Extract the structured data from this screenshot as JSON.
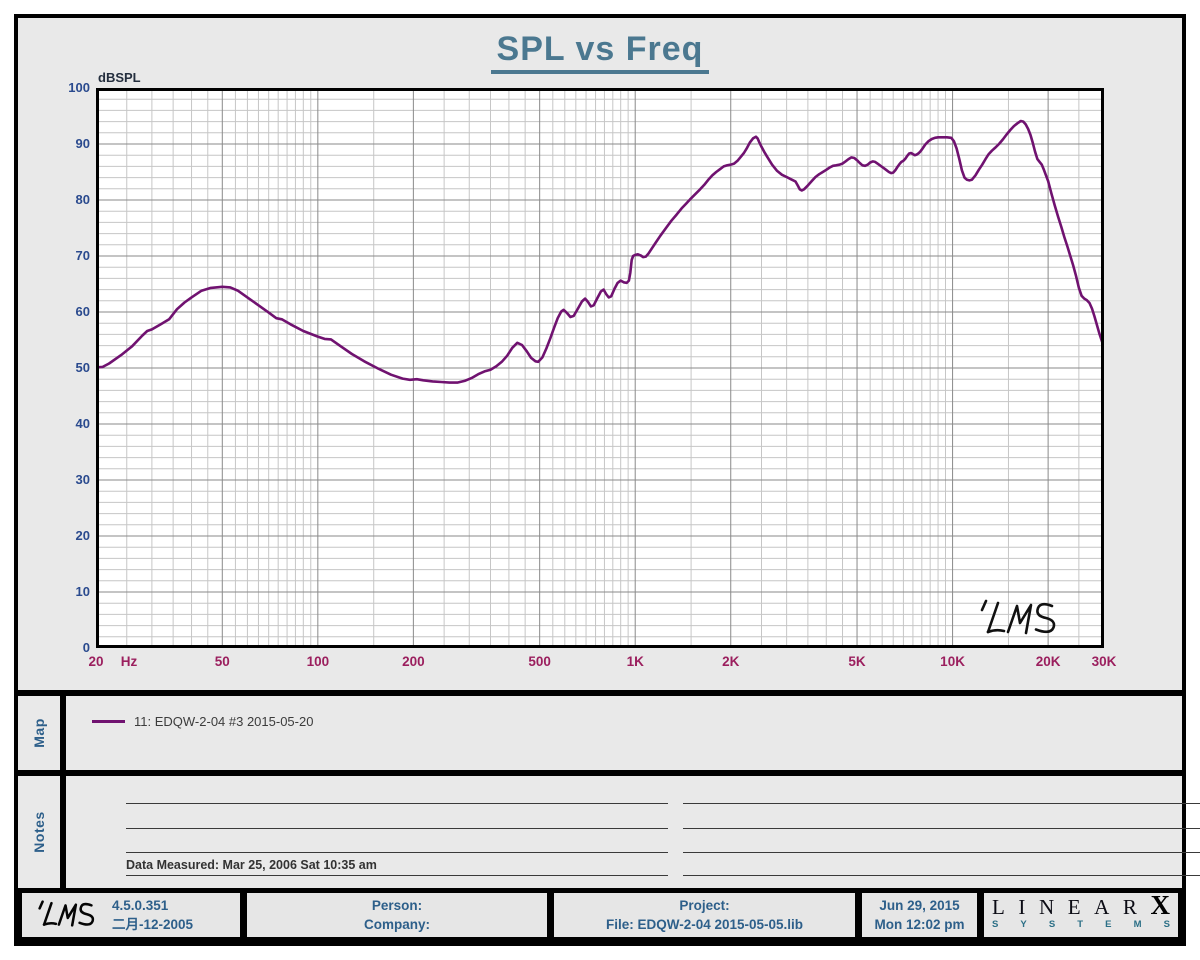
{
  "title": "SPL vs Freq",
  "chart_data": {
    "type": "line",
    "title": "SPL vs Freq",
    "xlabel": "Hz",
    "ylabel": "dBSPL",
    "xscale": "log",
    "xlim": [
      20,
      30000
    ],
    "ylim": [
      0,
      100
    ],
    "grid": "on",
    "x_unit": "Hz",
    "x_ticks": [
      {
        "label": "20",
        "f": 20
      },
      {
        "label": "50",
        "f": 50
      },
      {
        "label": "100",
        "f": 100
      },
      {
        "label": "200",
        "f": 200
      },
      {
        "label": "500",
        "f": 500
      },
      {
        "label": "1K",
        "f": 1000
      },
      {
        "label": "2K",
        "f": 2000
      },
      {
        "label": "5K",
        "f": 5000
      },
      {
        "label": "10K",
        "f": 10000
      },
      {
        "label": "20K",
        "f": 20000
      },
      {
        "label": "30K",
        "f": 30000
      }
    ],
    "y_ticks": [
      0,
      10,
      20,
      30,
      40,
      50,
      60,
      70,
      80,
      90,
      100
    ],
    "watermark": "LMS",
    "series": [
      {
        "name": "11: EDQW-2-04  #3   2015-05-20",
        "color": "#701270",
        "points": [
          [
            20,
            50.1
          ],
          [
            21,
            50.2
          ],
          [
            22,
            50.8
          ],
          [
            24,
            52.3
          ],
          [
            26,
            53.9
          ],
          [
            28,
            55.8
          ],
          [
            29,
            56.6
          ],
          [
            30,
            56.9
          ],
          [
            32,
            57.8
          ],
          [
            34,
            58.7
          ],
          [
            36,
            60.5
          ],
          [
            38,
            61.7
          ],
          [
            40,
            62.6
          ],
          [
            43,
            63.8
          ],
          [
            46,
            64.3
          ],
          [
            50,
            64.5
          ],
          [
            53,
            64.4
          ],
          [
            56,
            63.8
          ],
          [
            60,
            62.6
          ],
          [
            65,
            61.2
          ],
          [
            70,
            59.9
          ],
          [
            74,
            58.9
          ],
          [
            77,
            58.7
          ],
          [
            82,
            57.8
          ],
          [
            90,
            56.6
          ],
          [
            100,
            55.6
          ],
          [
            105,
            55.2
          ],
          [
            110,
            55.1
          ],
          [
            118,
            53.9
          ],
          [
            128,
            52.5
          ],
          [
            140,
            51.2
          ],
          [
            155,
            49.9
          ],
          [
            170,
            48.8
          ],
          [
            185,
            48.1
          ],
          [
            195,
            47.9
          ],
          [
            205,
            48.0
          ],
          [
            215,
            47.8
          ],
          [
            230,
            47.6
          ],
          [
            245,
            47.5
          ],
          [
            260,
            47.4
          ],
          [
            275,
            47.4
          ],
          [
            290,
            47.7
          ],
          [
            305,
            48.2
          ],
          [
            320,
            48.9
          ],
          [
            335,
            49.4
          ],
          [
            350,
            49.7
          ],
          [
            365,
            50.3
          ],
          [
            380,
            51.1
          ],
          [
            395,
            52.2
          ],
          [
            410,
            53.6
          ],
          [
            425,
            54.5
          ],
          [
            440,
            54.1
          ],
          [
            455,
            53.0
          ],
          [
            470,
            51.8
          ],
          [
            485,
            51.2
          ],
          [
            495,
            51.1
          ],
          [
            510,
            51.9
          ],
          [
            525,
            53.5
          ],
          [
            540,
            55.3
          ],
          [
            555,
            57.2
          ],
          [
            570,
            58.9
          ],
          [
            585,
            60.1
          ],
          [
            595,
            60.4
          ],
          [
            610,
            59.8
          ],
          [
            625,
            59.1
          ],
          [
            640,
            59.3
          ],
          [
            660,
            60.6
          ],
          [
            680,
            61.9
          ],
          [
            695,
            62.4
          ],
          [
            710,
            61.8
          ],
          [
            725,
            61.0
          ],
          [
            740,
            61.2
          ],
          [
            760,
            62.5
          ],
          [
            780,
            63.7
          ],
          [
            795,
            64.0
          ],
          [
            810,
            63.2
          ],
          [
            825,
            62.6
          ],
          [
            840,
            62.8
          ],
          [
            860,
            64.1
          ],
          [
            880,
            65.2
          ],
          [
            900,
            65.6
          ],
          [
            920,
            65.3
          ],
          [
            940,
            65.2
          ],
          [
            955,
            65.6
          ],
          [
            965,
            67.0
          ],
          [
            975,
            69.3
          ],
          [
            985,
            70.0
          ],
          [
            1000,
            70.2
          ],
          [
            1020,
            70.3
          ],
          [
            1040,
            70.1
          ],
          [
            1060,
            69.8
          ],
          [
            1080,
            69.9
          ],
          [
            1100,
            70.4
          ],
          [
            1130,
            71.4
          ],
          [
            1160,
            72.4
          ],
          [
            1200,
            73.6
          ],
          [
            1250,
            75.0
          ],
          [
            1300,
            76.3
          ],
          [
            1350,
            77.4
          ],
          [
            1400,
            78.5
          ],
          [
            1450,
            79.4
          ],
          [
            1500,
            80.3
          ],
          [
            1550,
            81.1
          ],
          [
            1600,
            81.9
          ],
          [
            1650,
            82.7
          ],
          [
            1700,
            83.6
          ],
          [
            1750,
            84.4
          ],
          [
            1800,
            85.0
          ],
          [
            1850,
            85.5
          ],
          [
            1900,
            86.0
          ],
          [
            1950,
            86.2
          ],
          [
            2000,
            86.3
          ],
          [
            2050,
            86.5
          ],
          [
            2100,
            87.0
          ],
          [
            2150,
            87.7
          ],
          [
            2200,
            88.4
          ],
          [
            2250,
            89.3
          ],
          [
            2300,
            90.3
          ],
          [
            2350,
            91.0
          ],
          [
            2400,
            91.3
          ],
          [
            2430,
            91.0
          ],
          [
            2460,
            90.3
          ],
          [
            2500,
            89.5
          ],
          [
            2550,
            88.6
          ],
          [
            2600,
            87.8
          ],
          [
            2700,
            86.3
          ],
          [
            2800,
            85.2
          ],
          [
            2900,
            84.5
          ],
          [
            3000,
            84.1
          ],
          [
            3100,
            83.7
          ],
          [
            3200,
            83.3
          ],
          [
            3250,
            82.6
          ],
          [
            3300,
            81.9
          ],
          [
            3350,
            81.7
          ],
          [
            3400,
            81.9
          ],
          [
            3500,
            82.6
          ],
          [
            3600,
            83.4
          ],
          [
            3700,
            84.1
          ],
          [
            3800,
            84.6
          ],
          [
            3900,
            85.0
          ],
          [
            4000,
            85.4
          ],
          [
            4100,
            85.8
          ],
          [
            4200,
            86.1
          ],
          [
            4300,
            86.2
          ],
          [
            4400,
            86.3
          ],
          [
            4500,
            86.5
          ],
          [
            4600,
            86.9
          ],
          [
            4700,
            87.3
          ],
          [
            4800,
            87.6
          ],
          [
            4900,
            87.5
          ],
          [
            5000,
            87.1
          ],
          [
            5100,
            86.6
          ],
          [
            5200,
            86.2
          ],
          [
            5300,
            86.1
          ],
          [
            5400,
            86.3
          ],
          [
            5500,
            86.7
          ],
          [
            5600,
            86.9
          ],
          [
            5700,
            86.8
          ],
          [
            5800,
            86.5
          ],
          [
            5900,
            86.2
          ],
          [
            6000,
            85.9
          ],
          [
            6100,
            85.6
          ],
          [
            6200,
            85.3
          ],
          [
            6300,
            85.0
          ],
          [
            6400,
            84.8
          ],
          [
            6500,
            84.9
          ],
          [
            6600,
            85.3
          ],
          [
            6700,
            85.9
          ],
          [
            6800,
            86.4
          ],
          [
            6900,
            86.8
          ],
          [
            7000,
            87.0
          ],
          [
            7100,
            87.4
          ],
          [
            7200,
            87.9
          ],
          [
            7300,
            88.3
          ],
          [
            7400,
            88.4
          ],
          [
            7500,
            88.2
          ],
          [
            7600,
            88.0
          ],
          [
            7700,
            88.1
          ],
          [
            7800,
            88.3
          ],
          [
            7900,
            88.6
          ],
          [
            8000,
            89.0
          ],
          [
            8200,
            89.9
          ],
          [
            8400,
            90.5
          ],
          [
            8600,
            90.9
          ],
          [
            8800,
            91.1
          ],
          [
            9000,
            91.2
          ],
          [
            9300,
            91.2
          ],
          [
            9600,
            91.2
          ],
          [
            9900,
            91.1
          ],
          [
            10100,
            90.5
          ],
          [
            10300,
            89.2
          ],
          [
            10500,
            87.3
          ],
          [
            10700,
            85.3
          ],
          [
            10900,
            84.0
          ],
          [
            11100,
            83.6
          ],
          [
            11300,
            83.5
          ],
          [
            11500,
            83.6
          ],
          [
            11800,
            84.4
          ],
          [
            12100,
            85.4
          ],
          [
            12400,
            86.3
          ],
          [
            12700,
            87.3
          ],
          [
            13000,
            88.2
          ],
          [
            13300,
            88.8
          ],
          [
            13600,
            89.3
          ],
          [
            14000,
            90.0
          ],
          [
            14400,
            90.8
          ],
          [
            14800,
            91.7
          ],
          [
            15200,
            92.5
          ],
          [
            15600,
            93.2
          ],
          [
            16000,
            93.7
          ],
          [
            16400,
            94.1
          ],
          [
            16700,
            94.0
          ],
          [
            17000,
            93.5
          ],
          [
            17300,
            92.7
          ],
          [
            17600,
            91.6
          ],
          [
            17900,
            90.2
          ],
          [
            18200,
            88.6
          ],
          [
            18500,
            87.3
          ],
          [
            18800,
            86.8
          ],
          [
            19100,
            86.3
          ],
          [
            19400,
            85.4
          ],
          [
            19700,
            84.4
          ],
          [
            20000,
            83.4
          ],
          [
            20500,
            81.1
          ],
          [
            21000,
            79.0
          ],
          [
            21500,
            77.0
          ],
          [
            22000,
            75.2
          ],
          [
            22500,
            73.4
          ],
          [
            23000,
            71.7
          ],
          [
            23500,
            70.0
          ],
          [
            24000,
            68.3
          ],
          [
            24500,
            66.4
          ],
          [
            25000,
            64.3
          ],
          [
            25500,
            62.9
          ],
          [
            26000,
            62.4
          ],
          [
            26500,
            62.1
          ],
          [
            27000,
            61.6
          ],
          [
            27500,
            60.6
          ],
          [
            28000,
            59.2
          ],
          [
            28500,
            57.7
          ],
          [
            29000,
            56.2
          ],
          [
            29500,
            54.9
          ],
          [
            30000,
            53.7
          ]
        ]
      }
    ]
  },
  "map": {
    "label": "Map",
    "legend": "11: EDQW-2-04  #3   2015-05-20"
  },
  "notes": {
    "label": "Notes",
    "data_measured": "Data Measured: Mar 25, 2006  Sat 10:35 am"
  },
  "footer": {
    "lms_logo": "LMS",
    "version": "4.5.0.351",
    "version_date": "二月-12-2005",
    "person_label": "Person:",
    "company_label": "Company:",
    "project_label": "Project:",
    "file_label": "File: EDQW-2-04   2015-05-05.lib",
    "date": "Jun 29, 2015",
    "time": "Mon 12:02 pm",
    "brand": {
      "letters": "LINEAR",
      "x": "X",
      "systems": "SYSTEMS"
    }
  },
  "colors": {
    "curve": "#701270",
    "title": "#4b7890",
    "y_label": "#2a4a8e",
    "x_label": "#9b1f5e",
    "blue_text": "#2d5f8a",
    "panel_bg": "#e9e9e9",
    "grid_minor": "#c6c6c6",
    "grid_major": "#8a8a8a"
  }
}
